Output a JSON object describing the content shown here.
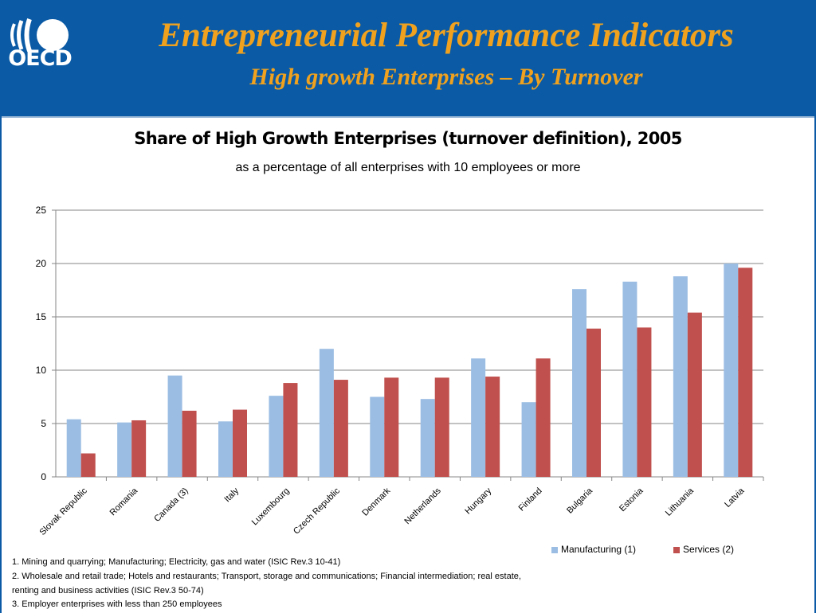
{
  "header": {
    "logo_text": "OECD",
    "title": "Entrepreneurial Performance Indicators",
    "subtitle": "High growth Enterprises – By Turnover"
  },
  "colors": {
    "header_bg": "#0a5aa5",
    "title_orange": "#f0a21e",
    "manufacturing": "#9bbde3",
    "services": "#c0504d"
  },
  "chart_data": {
    "type": "bar",
    "title": "Share of High Growth Enterprises (turnover definition), 2005",
    "subtitle": "as a percentage of all enterprises with 10 employees or more",
    "categories": [
      "Slovak Republic",
      "Romania",
      "Canada (3)",
      "Italy",
      "Luxembourg",
      "Czech Republic",
      "Denmark",
      "Netherlands",
      "Hungary",
      "Finland",
      "Bulgaria",
      "Estonia",
      "Lithuania",
      "Latvia"
    ],
    "series": [
      {
        "name": "Manufacturing (1)",
        "values": [
          5.4,
          5.1,
          9.5,
          5.2,
          7.6,
          12.0,
          7.5,
          7.3,
          11.1,
          7.0,
          17.6,
          18.3,
          18.8,
          20.0
        ]
      },
      {
        "name": "Services (2)",
        "values": [
          2.2,
          5.3,
          6.2,
          6.3,
          8.8,
          9.1,
          9.3,
          9.3,
          9.4,
          11.1,
          13.9,
          14.0,
          15.4,
          19.6
        ]
      }
    ],
    "ylim": [
      0,
      25
    ],
    "yticks": [
      0,
      5,
      10,
      15,
      20,
      25
    ],
    "grid": true,
    "legend_position": "bottom-right"
  },
  "notes": [
    "1. Mining and quarrying; Manufacturing;  Electricity, gas and water (ISIC Rev.3 10-41)",
    "2. Wholesale and retail trade; Hotels and restaurants; Transport, storage and communications; Financial intermediation; real estate,",
    "renting and business activities (ISIC Rev.3 50-74)",
    "3. Employer enterprises with less than 250 employees"
  ]
}
